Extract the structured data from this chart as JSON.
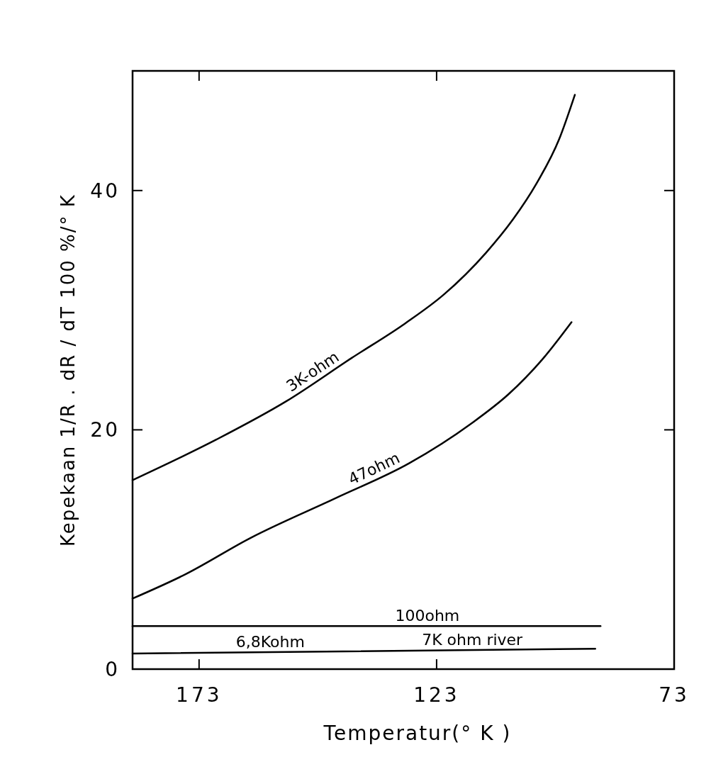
{
  "chart_data": {
    "type": "line",
    "xlabel": "Temperatur(° K )",
    "ylabel": "Kepekaan 1/R . dR / dT 100 %/° K",
    "xlim": [
      187,
      73
    ],
    "xticks": [
      173,
      123,
      73
    ],
    "ylim": [
      0,
      50
    ],
    "yticks": [
      0,
      20,
      40
    ],
    "series": [
      {
        "name": "3K-ohm",
        "color": "#000000",
        "x": [
          187,
          169.3,
          154.6,
          140.9,
          129.6,
          121.5,
          112.6,
          106.9,
          102.1,
          97.2,
          93.9
        ],
        "values": [
          15.8,
          19.2,
          22.4,
          26.0,
          28.9,
          31.3,
          34.8,
          37.6,
          40.5,
          44.3,
          48.0
        ]
      },
      {
        "name": "47ohm",
        "color": "#000000",
        "x": [
          187,
          176,
          162,
          144.2,
          128.8,
          115.8,
          107.8,
          100.5,
          94.6
        ],
        "values": [
          5.9,
          7.9,
          11.0,
          14.3,
          17.2,
          20.5,
          23.0,
          26.0,
          29.0
        ]
      },
      {
        "name": "100ohm",
        "color": "#000000",
        "x": [
          187,
          88.5
        ],
        "values": [
          3.6,
          3.6
        ]
      },
      {
        "color": "#000000",
        "x": [
          187,
          89.6
        ],
        "values": [
          1.3,
          1.7
        ]
      }
    ],
    "annotations": [
      {
        "text": "6,8Kohm",
        "x": 158,
        "y": 1.4
      },
      {
        "text": "7K ohm river",
        "x": 115.5,
        "y": 1.6
      }
    ]
  }
}
